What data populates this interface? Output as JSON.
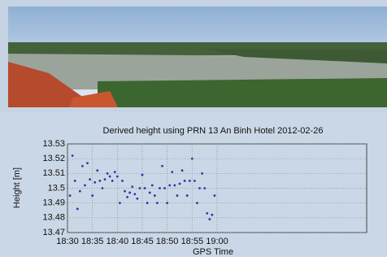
{
  "chart_data": {
    "type": "scatter",
    "title": "Derived height using PRN 13 An Binh Hotel 2012-02-26",
    "xlabel": "GPS Time",
    "ylabel": "Height [m]",
    "color": "#3434a8",
    "grid": true,
    "xlim": [
      1110,
      1170
    ],
    "xticks": [
      {
        "value": 1110,
        "label": "18:30"
      },
      {
        "value": 1115,
        "label": "18:35"
      },
      {
        "value": 1120,
        "label": "18:40"
      },
      {
        "value": 1125,
        "label": "18:45"
      },
      {
        "value": 1130,
        "label": "18:50"
      },
      {
        "value": 1135,
        "label": "18:55"
      },
      {
        "value": 1140,
        "label": "19:00"
      }
    ],
    "ylim": [
      13.47,
      13.53
    ],
    "yticks": [
      13.47,
      13.48,
      13.49,
      13.5,
      13.51,
      13.52,
      13.53
    ],
    "x": [
      1110.5,
      1111,
      1111.5,
      1112,
      1112.5,
      1113,
      1113.5,
      1114,
      1114.5,
      1115,
      1115.5,
      1116,
      1116.5,
      1117,
      1117.5,
      1118,
      1118.5,
      1119,
      1119.5,
      1120,
      1120.5,
      1121,
      1121.5,
      1122,
      1122.5,
      1123,
      1123.5,
      1124,
      1124.5,
      1125,
      1125.5,
      1126,
      1126.5,
      1127,
      1127.5,
      1128,
      1128.5,
      1129,
      1129.5,
      1130,
      1130.5,
      1131,
      1131.5,
      1132,
      1132.5,
      1133,
      1133.5,
      1134,
      1134.5,
      1135,
      1135.5,
      1136,
      1136.5,
      1137,
      1137.5,
      1138,
      1138.5,
      1139,
      1139.5
    ],
    "values": [
      13.495,
      13.522,
      13.505,
      13.486,
      13.498,
      13.515,
      13.502,
      13.517,
      13.506,
      13.495,
      13.504,
      13.512,
      13.505,
      13.5,
      13.506,
      13.51,
      13.508,
      13.505,
      13.511,
      13.508,
      13.49,
      13.505,
      13.498,
      13.494,
      13.497,
      13.501,
      13.496,
      13.493,
      13.5,
      13.509,
      13.5,
      13.49,
      13.497,
      13.502,
      13.495,
      13.49,
      13.5,
      13.515,
      13.5,
      13.49,
      13.502,
      13.511,
      13.502,
      13.495,
      13.503,
      13.512,
      13.505,
      13.495,
      13.505,
      13.52,
      13.505,
      13.49,
      13.5,
      13.51,
      13.5,
      13.483,
      13.479,
      13.482,
      13.495
    ]
  }
}
